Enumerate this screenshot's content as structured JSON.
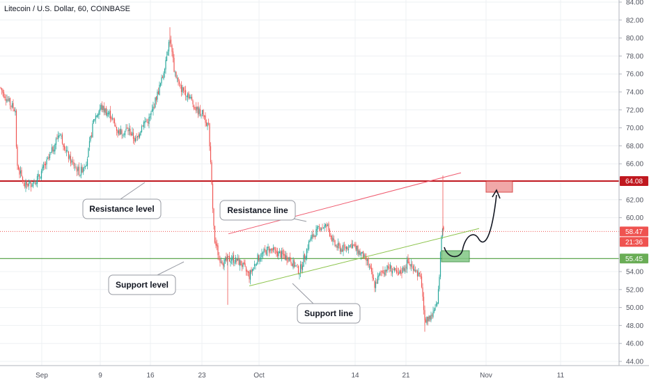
{
  "chart_data": {
    "type": "candlestick",
    "title": "Litecoin / U.S. Dollar, 60, COINBASE",
    "y_axis": {
      "ticks": [
        "84.00",
        "82.00",
        "80.00",
        "78.00",
        "76.00",
        "74.00",
        "72.00",
        "70.00",
        "68.00",
        "66.00",
        "62.00",
        "60.00",
        "54.00",
        "52.00",
        "50.00",
        "48.00",
        "46.00",
        "44.00"
      ],
      "ylim": [
        44,
        84
      ],
      "position": "right"
    },
    "x_axis": {
      "ticks": [
        "Sep",
        "9",
        "16",
        "23",
        "Oct",
        "14",
        "21",
        "Nov",
        "11"
      ]
    },
    "price_path": [
      [
        0,
        74.5
      ],
      [
        15,
        72.6
      ],
      [
        22,
        72.0
      ],
      [
        24,
        66.0
      ],
      [
        35,
        63.6
      ],
      [
        45,
        63.8
      ],
      [
        55,
        64.5
      ],
      [
        70,
        66.5
      ],
      [
        85,
        69.5
      ],
      [
        100,
        66.5
      ],
      [
        115,
        65.0
      ],
      [
        125,
        66.5
      ],
      [
        135,
        71.0
      ],
      [
        145,
        72.3
      ],
      [
        158,
        71.5
      ],
      [
        170,
        69.5
      ],
      [
        185,
        69.8
      ],
      [
        195,
        68.5
      ],
      [
        205,
        70.5
      ],
      [
        215,
        71.0
      ],
      [
        225,
        73.5
      ],
      [
        233,
        75.5
      ],
      [
        240,
        78.5
      ],
      [
        244,
        80.0
      ],
      [
        250,
        76.5
      ],
      [
        258,
        74.5
      ],
      [
        270,
        73.8
      ],
      [
        282,
        72.0
      ],
      [
        292,
        71.5
      ],
      [
        300,
        70.0
      ],
      [
        303,
        65.0
      ],
      [
        308,
        57.5
      ],
      [
        315,
        55.5
      ],
      [
        322,
        55.0
      ],
      [
        332,
        55.5
      ],
      [
        345,
        55.0
      ],
      [
        358,
        53.5
      ],
      [
        370,
        55.5
      ],
      [
        385,
        56.5
      ],
      [
        400,
        56.0
      ],
      [
        415,
        55.5
      ],
      [
        430,
        54.0
      ],
      [
        445,
        57.5
      ],
      [
        460,
        59.0
      ],
      [
        470,
        59.0
      ],
      [
        480,
        57.0
      ],
      [
        490,
        56.5
      ],
      [
        505,
        57.0
      ],
      [
        518,
        56.0
      ],
      [
        528,
        55.0
      ],
      [
        538,
        52.5
      ],
      [
        548,
        54.0
      ],
      [
        560,
        54.5
      ],
      [
        572,
        53.5
      ],
      [
        585,
        55.0
      ],
      [
        595,
        54.5
      ],
      [
        605,
        53.0
      ],
      [
        610,
        48.5
      ],
      [
        618,
        49.0
      ],
      [
        626,
        49.8
      ],
      [
        630,
        52.0
      ],
      [
        633,
        57.5
      ],
      [
        636,
        59.5
      ],
      [
        638,
        58.5
      ]
    ],
    "levels": [
      {
        "name": "Resistance level",
        "value": 64.08,
        "color": "#c0181f"
      },
      {
        "name": "Support level",
        "value": 55.45,
        "color": "#4b9b3a"
      }
    ],
    "current_price": {
      "value": 58.47,
      "countdown": "21:36",
      "color": "#ef5350"
    },
    "support_badge": {
      "value": "55.45",
      "color": "#6aad56"
    },
    "resistance_badge": {
      "value": "64.08",
      "color": "#c0181f"
    },
    "trendlines": [
      {
        "name": "Resistance line",
        "from": [
          328,
          58.2
        ],
        "to": [
          662,
          65.0
        ],
        "color": "#ef5b6f"
      },
      {
        "name": "Support line",
        "from": [
          358,
          52.4
        ],
        "to": [
          688,
          58.8
        ],
        "color": "#8bc34a"
      }
    ],
    "annotations": [
      {
        "text": "Resistance level"
      },
      {
        "text": "Resistance line"
      },
      {
        "text": "Support level"
      },
      {
        "text": "Support line"
      }
    ],
    "zones": [
      {
        "name": "target-zone",
        "color": "#ef9a9a",
        "stroke": "#d32f2f"
      },
      {
        "name": "entry-zone",
        "color": "#81c784",
        "stroke": "#388e3c"
      }
    ],
    "projection": {
      "color": "#131722"
    },
    "grid": true,
    "colors": {
      "up": "#26a69a",
      "down": "#ef5350",
      "grid": "#eef0f3"
    }
  }
}
